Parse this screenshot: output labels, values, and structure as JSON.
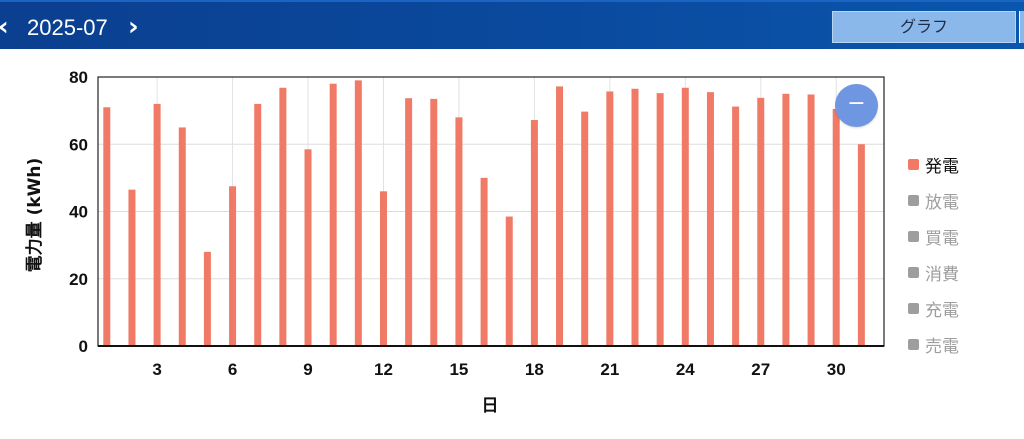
{
  "header": {
    "prev_icon": "‹",
    "month": "2025-07",
    "next_icon": "›",
    "graph_tab": "グラフ"
  },
  "zoom_button": {
    "icon": "−"
  },
  "legend": [
    {
      "label": "発電",
      "color": "#f07a66",
      "text_color": "#111111",
      "active": true
    },
    {
      "label": "放電",
      "color": "#9e9e9e",
      "text_color": "#9e9e9e",
      "active": false
    },
    {
      "label": "買電",
      "color": "#9e9e9e",
      "text_color": "#9e9e9e",
      "active": false
    },
    {
      "label": "消費",
      "color": "#9e9e9e",
      "text_color": "#9e9e9e",
      "active": false
    },
    {
      "label": "充電",
      "color": "#9e9e9e",
      "text_color": "#9e9e9e",
      "active": false
    },
    {
      "label": "売電",
      "color": "#9e9e9e",
      "text_color": "#9e9e9e",
      "active": false
    }
  ],
  "chart_data": {
    "type": "bar",
    "xlabel": "日",
    "ylabel": "電力量 (kWh)",
    "ylim": [
      0,
      80
    ],
    "yticks": [
      0,
      20,
      40,
      60,
      80
    ],
    "xticks": [
      3,
      6,
      9,
      12,
      15,
      18,
      21,
      24,
      27,
      30
    ],
    "grid": true,
    "legend_position": "right",
    "x": [
      1,
      2,
      3,
      4,
      5,
      6,
      7,
      8,
      9,
      10,
      11,
      12,
      13,
      14,
      15,
      16,
      17,
      18,
      19,
      20,
      21,
      22,
      23,
      24,
      25,
      26,
      27,
      28,
      29,
      30,
      31
    ],
    "series": [
      {
        "name": "発電",
        "color": "#f07a66",
        "values": [
          71.0,
          46.5,
          72.0,
          65.0,
          28.0,
          47.5,
          72.0,
          76.8,
          58.5,
          78.0,
          79.0,
          46.0,
          73.7,
          73.5,
          68.0,
          50.0,
          38.5,
          67.2,
          77.2,
          69.7,
          75.7,
          76.5,
          75.2,
          76.8,
          75.5,
          71.2,
          73.8,
          75.0,
          74.8,
          70.5,
          60.0
        ]
      }
    ]
  }
}
